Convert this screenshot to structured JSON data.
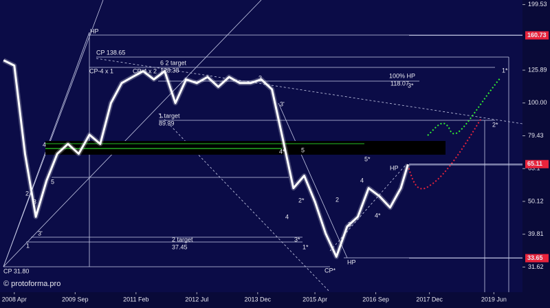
{
  "chart_data": {
    "type": "line",
    "log_y": true,
    "background": "#0b0c47",
    "series": [
      {
        "color": "#ffffff",
        "x": [
          "2008-01",
          "2008-04",
          "2008-07",
          "2008-10",
          "2009-01",
          "2009-04",
          "2009-07",
          "2009-10",
          "2010-01",
          "2010-04",
          "2010-07",
          "2010-10",
          "2011-01",
          "2011-04",
          "2011-07",
          "2011-10",
          "2012-01",
          "2012-04",
          "2012-07",
          "2012-10",
          "2013-01",
          "2013-04",
          "2013-07",
          "2013-10",
          "2014-01",
          "2014-04",
          "2014-07",
          "2014-10",
          "2015-01",
          "2015-04",
          "2015-07",
          "2015-10",
          "2016-01",
          "2016-04",
          "2016-07",
          "2016-10",
          "2017-01",
          "2017-04",
          "2017-06"
        ],
        "values": [
          135,
          130,
          70,
          45,
          58,
          70,
          75,
          70,
          80,
          75,
          100,
          115,
          120,
          125,
          118,
          125,
          100,
          118,
          115,
          120,
          112,
          120,
          115,
          115,
          118,
          110,
          78,
          55,
          60,
          50,
          40,
          34,
          42,
          45,
          55,
          52,
          48,
          55,
          65
        ]
      }
    ],
    "xlim": [
      "2007-12",
      "2020-02"
    ],
    "xticks": [
      {
        "value": "2008-04",
        "label": "2008 Apr"
      },
      {
        "value": "2009-09",
        "label": "2009 Sep"
      },
      {
        "value": "2011-02",
        "label": "2011 Feb"
      },
      {
        "value": "2012-07",
        "label": "2012 Jul"
      },
      {
        "value": "2013-12",
        "label": "2013 Dec"
      },
      {
        "value": "2015-04",
        "label": "2015 Apr"
      },
      {
        "value": "2016-09",
        "label": "2016 Sep"
      },
      {
        "value": "2017-12",
        "label": "2017 Dec"
      },
      {
        "value": "2019-06",
        "label": "2019 Jun"
      }
    ],
    "ylim": [
      26.5,
      206
    ],
    "yticks": [
      199.53,
      125.89,
      {
        "value": 100,
        "label": "100.00"
      },
      79.43,
      63.1,
      50.12,
      39.81,
      31.62
    ],
    "levels": [
      160.73,
      65.11,
      33.65
    ],
    "level_color": "#e8243c",
    "annotations": [
      "HP",
      "CP  138.65",
      "CP-4 x 1",
      "CP-4 x 2",
      "6 2 target",
      "128.38",
      "3",
      "100% HP",
      "118.07",
      "3*",
      "1*",
      "1 target",
      "89.39",
      "3'",
      "2*",
      "4",
      "4*",
      "5",
      "5*",
      "HP",
      "5",
      "2",
      "2*",
      "2",
      "4",
      "4",
      "3",
      "3'",
      "3",
      "4*",
      "1",
      "2 target",
      "37.45",
      "3*",
      "1*",
      "HP",
      "CP*",
      "CP  31.80",
      "© protoforma.pro"
    ]
  }
}
